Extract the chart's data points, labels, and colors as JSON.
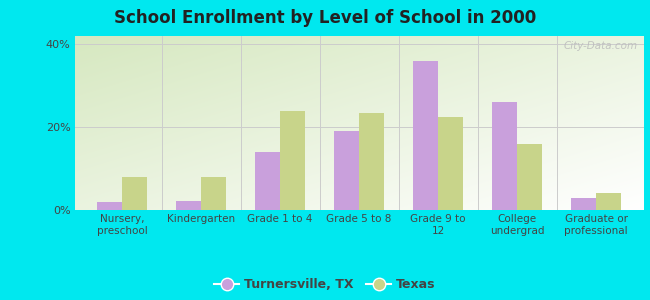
{
  "title": "School Enrollment by Level of School in 2000",
  "categories": [
    "Nursery,\npreschool",
    "Kindergarten",
    "Grade 1 to 4",
    "Grade 5 to 8",
    "Grade 9 to\n12",
    "College\nundergrad",
    "Graduate or\nprofessional"
  ],
  "turnersville": [
    2.0,
    2.2,
    14.0,
    19.0,
    36.0,
    26.0,
    3.0
  ],
  "texas": [
    8.0,
    8.0,
    24.0,
    23.5,
    22.5,
    16.0,
    4.0
  ],
  "turnersville_color": "#c9a0dc",
  "texas_color": "#c8d48a",
  "background_outer": "#00e8ef",
  "background_inner_top_left": "#d6e8c0",
  "background_inner_bottom_right": "#ffffff",
  "ylabel_ticks": [
    "0%",
    "20%",
    "40%"
  ],
  "ytick_vals": [
    0,
    20,
    40
  ],
  "ylim": [
    0,
    42
  ],
  "legend_labels": [
    "Turnersville, TX",
    "Texas"
  ],
  "watermark": "City-Data.com",
  "bar_width": 0.32
}
